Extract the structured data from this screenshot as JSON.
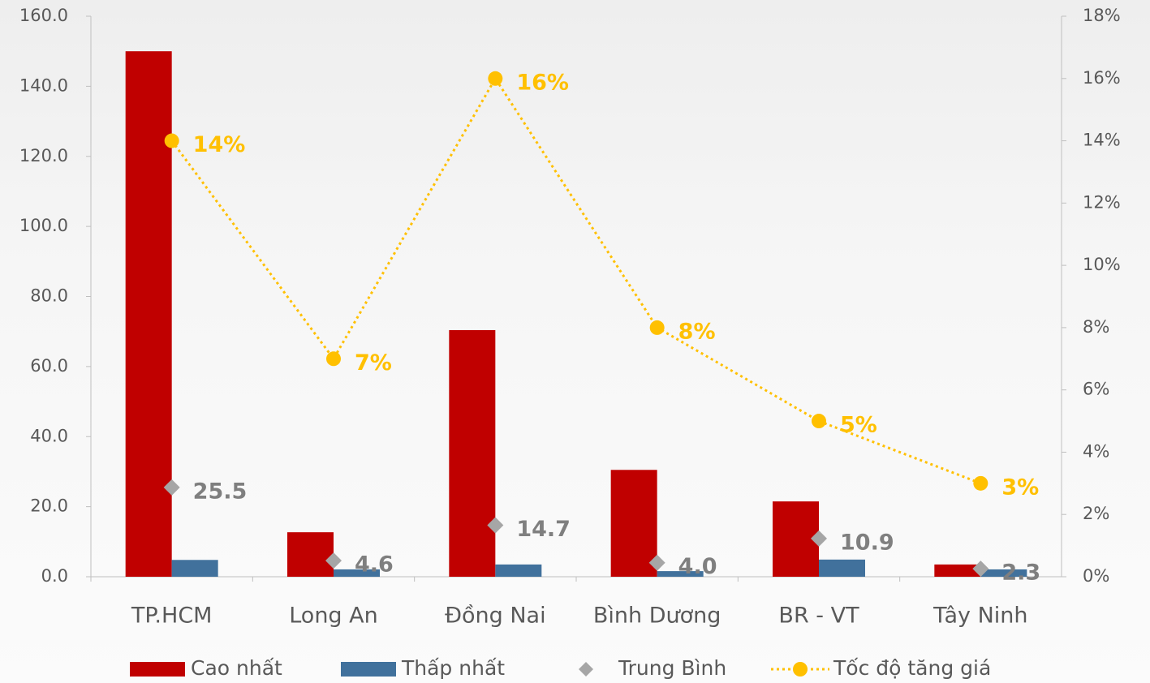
{
  "chart_data": {
    "type": "bar",
    "categories": [
      "TP.HCM",
      "Long An",
      "Đồng Nai",
      "Bình Dương",
      "BR - VT",
      "Tây Ninh"
    ],
    "series": [
      {
        "name": "Cao nhất",
        "type": "bar",
        "color": "#c00000",
        "values": [
          150,
          12.7,
          70.4,
          30.5,
          21.5,
          3.5
        ]
      },
      {
        "name": "Thấp nhất",
        "type": "bar",
        "color": "#41719c",
        "values": [
          4.8,
          2.1,
          3.5,
          1.6,
          4.9,
          2.1
        ]
      },
      {
        "name": "Trung Bình",
        "type": "scatter",
        "marker": "diamond",
        "color": "#a6a6a6",
        "values": [
          25.5,
          4.6,
          14.7,
          4.0,
          10.9,
          2.3
        ],
        "value_labels": [
          "25.5",
          "4.6",
          "14.7",
          "4.0",
          "10.9",
          "2.3"
        ]
      },
      {
        "name": "Tốc độ tăng giá",
        "type": "line",
        "axis": "y2",
        "line_style": "dotted",
        "color": "#ffc000",
        "values": [
          14,
          7,
          16,
          8,
          5,
          3
        ],
        "value_labels": [
          "14%",
          "7%",
          "16%",
          "8%",
          "5%",
          "3%"
        ]
      }
    ],
    "ylim": [
      0,
      160
    ],
    "yticks": [
      {
        "value": 0,
        "label": "0.0"
      },
      {
        "value": 20,
        "label": "20.0"
      },
      {
        "value": 40,
        "label": "40.0"
      },
      {
        "value": 60,
        "label": "60.0"
      },
      {
        "value": 80,
        "label": "80.0"
      },
      {
        "value": 100,
        "label": "100.0"
      },
      {
        "value": 120,
        "label": "120.0"
      },
      {
        "value": 140,
        "label": "140.0"
      },
      {
        "value": 160,
        "label": "160.0"
      }
    ],
    "y2lim": [
      0,
      18
    ],
    "y2ticks": [
      {
        "value": 0,
        "label": "0%"
      },
      {
        "value": 2,
        "label": "2%"
      },
      {
        "value": 4,
        "label": "4%"
      },
      {
        "value": 6,
        "label": "6%"
      },
      {
        "value": 8,
        "label": "8%"
      },
      {
        "value": 10,
        "label": "10%"
      },
      {
        "value": 12,
        "label": "12%"
      },
      {
        "value": 14,
        "label": "14%"
      },
      {
        "value": 16,
        "label": "16%"
      },
      {
        "value": 18,
        "label": "18%"
      }
    ],
    "grid": false,
    "legend": "bottom"
  }
}
